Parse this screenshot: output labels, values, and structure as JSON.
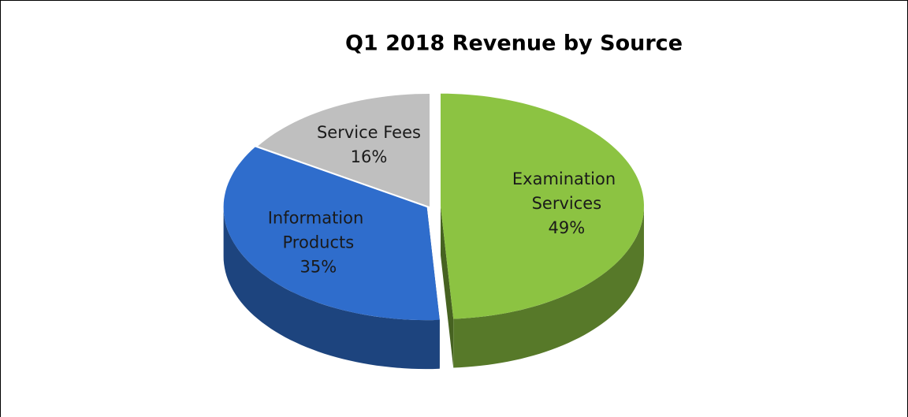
{
  "chart_data": {
    "type": "pie",
    "title": "Q1 2018 Revenue by Source",
    "categories": [
      "Examination Services",
      "Information Products",
      "Service Fees"
    ],
    "values": [
      49,
      35,
      16
    ],
    "value_labels": [
      "49%",
      "35%",
      "16%"
    ],
    "colors": [
      "#8cc342",
      "#2f6dcc",
      "#bfbfbf"
    ]
  }
}
